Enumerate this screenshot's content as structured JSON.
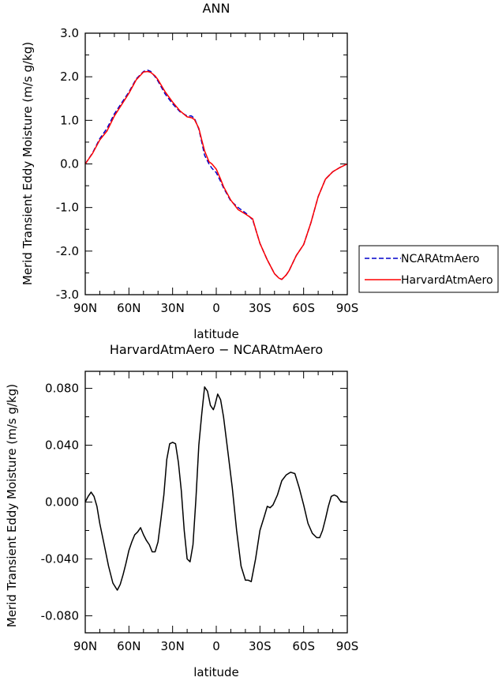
{
  "chart_data": [
    {
      "type": "line",
      "title": "ANN",
      "xlabel": "latitude",
      "ylabel": "Merid Transient Eddy Moisture  (m/s g/kg)",
      "xlim": [
        90,
        -90
      ],
      "ylim": [
        -3.0,
        3.0
      ],
      "x_ticks": [
        {
          "value": 90,
          "label": "90N"
        },
        {
          "value": 60,
          "label": "60N"
        },
        {
          "value": 30,
          "label": "30N"
        },
        {
          "value": 0,
          "label": "0"
        },
        {
          "value": -30,
          "label": "30S"
        },
        {
          "value": -60,
          "label": "60S"
        },
        {
          "value": -90,
          "label": "90S"
        }
      ],
      "y_ticks": [
        {
          "value": 3.0,
          "label": "3.0"
        },
        {
          "value": 2.0,
          "label": "2.0"
        },
        {
          "value": 1.0,
          "label": "1.0"
        },
        {
          "value": 0.0,
          "label": "0.0"
        },
        {
          "value": -1.0,
          "label": "-1.0"
        },
        {
          "value": -2.0,
          "label": "-2.0"
        },
        {
          "value": -3.0,
          "label": "-3.0"
        }
      ],
      "legend_position": "right",
      "series": [
        {
          "name": "NCARAtmAero",
          "color": "#0000cc",
          "dash": "dashed",
          "x": [
            90,
            85,
            80,
            75,
            70,
            65,
            60,
            55,
            50,
            47,
            45,
            42,
            40,
            35,
            30,
            25,
            20,
            17,
            15,
            12,
            10,
            8,
            5,
            3,
            0,
            -3,
            -5,
            -10,
            -15,
            -20,
            -25,
            -28,
            -30,
            -35,
            -40,
            -43,
            -45,
            -48,
            -50,
            -55,
            -60,
            -65,
            -70,
            -75,
            -80,
            -85,
            -90
          ],
          "y": [
            0.0,
            0.25,
            0.58,
            0.82,
            1.15,
            1.4,
            1.65,
            1.95,
            2.12,
            2.15,
            2.12,
            2.0,
            1.9,
            1.6,
            1.38,
            1.2,
            1.1,
            1.1,
            1.05,
            0.8,
            0.5,
            0.2,
            0.0,
            -0.1,
            -0.2,
            -0.4,
            -0.55,
            -0.85,
            -1.0,
            -1.12,
            -1.28,
            -1.6,
            -1.82,
            -2.2,
            -2.52,
            -2.62,
            -2.65,
            -2.55,
            -2.45,
            -2.1,
            -1.85,
            -1.35,
            -0.75,
            -0.35,
            -0.18,
            -0.08,
            0.0
          ]
        },
        {
          "name": "HarvardAtmAero",
          "color": "#ff0000",
          "dash": "solid",
          "x": [
            90,
            85,
            80,
            75,
            70,
            65,
            60,
            55,
            50,
            47,
            45,
            42,
            40,
            35,
            30,
            25,
            20,
            17,
            15,
            12,
            10,
            8,
            5,
            3,
            0,
            -3,
            -5,
            -10,
            -15,
            -20,
            -25,
            -28,
            -30,
            -35,
            -40,
            -43,
            -45,
            -48,
            -50,
            -55,
            -60,
            -65,
            -70,
            -75,
            -80,
            -85,
            -90
          ],
          "y": [
            0.0,
            0.24,
            0.55,
            0.76,
            1.1,
            1.36,
            1.62,
            1.93,
            2.11,
            2.12,
            2.1,
            2.02,
            1.93,
            1.65,
            1.42,
            1.22,
            1.08,
            1.06,
            1.02,
            0.82,
            0.55,
            0.3,
            0.05,
            0.0,
            -0.12,
            -0.35,
            -0.52,
            -0.83,
            -1.05,
            -1.15,
            -1.26,
            -1.6,
            -1.82,
            -2.2,
            -2.52,
            -2.62,
            -2.65,
            -2.55,
            -2.45,
            -2.1,
            -1.85,
            -1.35,
            -0.75,
            -0.35,
            -0.18,
            -0.08,
            0.0
          ]
        }
      ]
    },
    {
      "type": "line",
      "title": "HarvardAtmAero − NCARAtmAero",
      "xlabel": "latitude",
      "ylabel": "Merid Transient Eddy Moisture  (m/s g/kg)",
      "xlim": [
        90,
        -90
      ],
      "ylim": [
        -0.092,
        0.092
      ],
      "x_ticks": [
        {
          "value": 90,
          "label": "90N"
        },
        {
          "value": 60,
          "label": "60N"
        },
        {
          "value": 30,
          "label": "30N"
        },
        {
          "value": 0,
          "label": "0"
        },
        {
          "value": -30,
          "label": "30S"
        },
        {
          "value": -60,
          "label": "60S"
        },
        {
          "value": -90,
          "label": "90S"
        }
      ],
      "y_ticks": [
        {
          "value": 0.08,
          "label": "0.080"
        },
        {
          "value": 0.04,
          "label": "0.040"
        },
        {
          "value": 0.0,
          "label": "0.000"
        },
        {
          "value": -0.04,
          "label": "-0.040"
        },
        {
          "value": -0.08,
          "label": "-0.080"
        }
      ],
      "series": [
        {
          "name": "",
          "color": "#000000",
          "dash": "solid",
          "x": [
            90,
            88,
            86,
            84,
            82,
            80,
            77,
            74,
            71,
            68,
            66,
            64,
            62,
            60,
            58,
            56,
            54,
            52,
            50,
            48,
            46,
            44,
            42,
            40,
            38,
            36,
            34,
            32,
            30,
            28,
            26,
            24,
            22,
            20,
            18,
            16,
            14,
            12,
            10,
            8,
            6,
            4,
            2,
            1,
            -1,
            -3,
            -5,
            -8,
            -11,
            -14,
            -17,
            -20,
            -22,
            -24,
            -27,
            -30,
            -33,
            -35,
            -37,
            -39,
            -42,
            -45,
            -48,
            -51,
            -54,
            -57,
            -60,
            -63,
            -66,
            -69,
            -71,
            -73,
            -75,
            -77,
            -79,
            -81,
            -83,
            -85,
            -87,
            -90
          ],
          "y": [
            0.0,
            0.004,
            0.007,
            0.004,
            -0.003,
            -0.015,
            -0.03,
            -0.045,
            -0.057,
            -0.062,
            -0.058,
            -0.051,
            -0.043,
            -0.034,
            -0.028,
            -0.023,
            -0.021,
            -0.018,
            -0.023,
            -0.027,
            -0.03,
            -0.035,
            -0.035,
            -0.028,
            -0.012,
            0.005,
            0.03,
            0.041,
            0.042,
            0.041,
            0.028,
            0.008,
            -0.02,
            -0.04,
            -0.042,
            -0.03,
            0.002,
            0.04,
            0.062,
            0.081,
            0.078,
            0.068,
            0.065,
            0.068,
            0.076,
            0.072,
            0.06,
            0.035,
            0.01,
            -0.02,
            -0.045,
            -0.055,
            -0.055,
            -0.056,
            -0.04,
            -0.02,
            -0.01,
            -0.003,
            -0.004,
            -0.002,
            0.005,
            0.015,
            0.019,
            0.021,
            0.02,
            0.01,
            -0.002,
            -0.015,
            -0.022,
            -0.025,
            -0.025,
            -0.02,
            -0.012,
            -0.003,
            0.004,
            0.005,
            0.004,
            0.001,
            0.0,
            0.0
          ]
        }
      ]
    }
  ]
}
